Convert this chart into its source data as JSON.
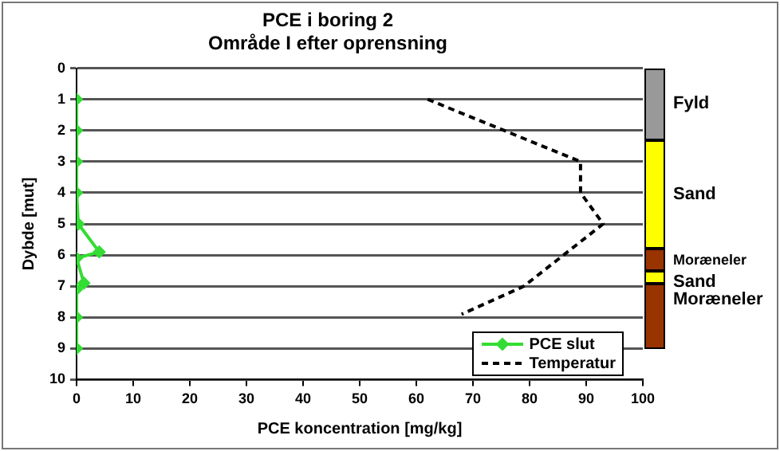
{
  "chart_data": {
    "type": "line",
    "title": "PCE i boring 2",
    "subtitle": "Område I efter oprensning",
    "xlabel": "PCE koncentration [mg/kg]",
    "ylabel": "Dybde [mut]",
    "xlim": [
      0,
      100
    ],
    "xticks": [
      0,
      10,
      20,
      30,
      40,
      50,
      60,
      70,
      80,
      90,
      100
    ],
    "ylim": [
      10,
      0
    ],
    "yticks": [
      0,
      1,
      2,
      3,
      4,
      5,
      6,
      7,
      8,
      9,
      10
    ],
    "grid": "y",
    "legend": "bottom right",
    "series": [
      {
        "name": "PCE slut",
        "color": "#33dd33",
        "marker": "diamond",
        "line_style": "solid",
        "x": [
          0,
          0,
          0,
          0,
          0.3,
          4,
          0,
          1.3,
          0,
          0,
          0
        ],
        "values": [
          1,
          2,
          3,
          4,
          5,
          5.9,
          6.1,
          6.9,
          7.1,
          8,
          9
        ]
      },
      {
        "name": "Temperatur",
        "color": "#000000",
        "marker": "none",
        "line_style": "dashed",
        "x": [
          62,
          89,
          89,
          93,
          79,
          68
        ],
        "values": [
          1,
          3,
          4,
          5,
          7,
          7.9
        ]
      }
    ],
    "annotations": [
      "Fyld",
      "Sand",
      "Moræneler",
      "Sand",
      "Moræneler"
    ]
  }
}
